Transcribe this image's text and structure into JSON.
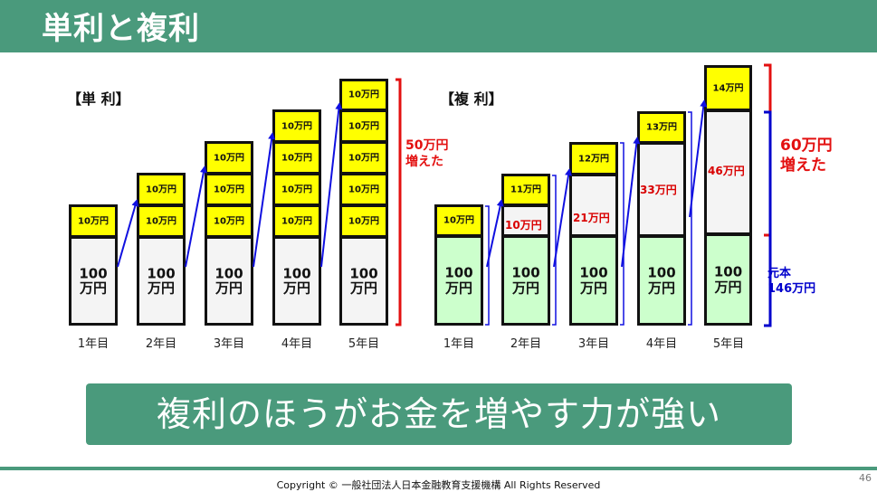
{
  "header": {
    "title": "単利と複利"
  },
  "simple": {
    "label": "【単 利】",
    "principal_label": "100\n万円",
    "interest_label": "10万円",
    "years": [
      "1年目",
      "2年目",
      "3年目",
      "4年目",
      "5年目"
    ],
    "note": "50万円\n増えた"
  },
  "compound": {
    "label": "【複 利】",
    "principal_label": "100\n万円",
    "years": [
      "1年目",
      "2年目",
      "3年目",
      "4年目",
      "5年目"
    ],
    "annual_interest": [
      "10万円",
      "11万円",
      "12万円",
      "13万円",
      "14万円"
    ],
    "accumulated_interest": [
      "10万円",
      "21万円",
      "33万円",
      "46万円"
    ],
    "note_red": "60万円\n増えた",
    "note_blue": "元本\n146万円"
  },
  "banner": {
    "text": "複利のほうがお金を増やす力が強い"
  },
  "footer": {
    "page_number": "46",
    "copyright": "Copyright © 一般社団法人日本金融教育支援機構 All Rights Reserved"
  },
  "colors": {
    "brand_green": "#4a9a7c",
    "interest_yellow": "#ffff00",
    "principal_green": "#ccffcc",
    "emphasis_red": "#e31010",
    "emphasis_blue": "#0000cc"
  }
}
